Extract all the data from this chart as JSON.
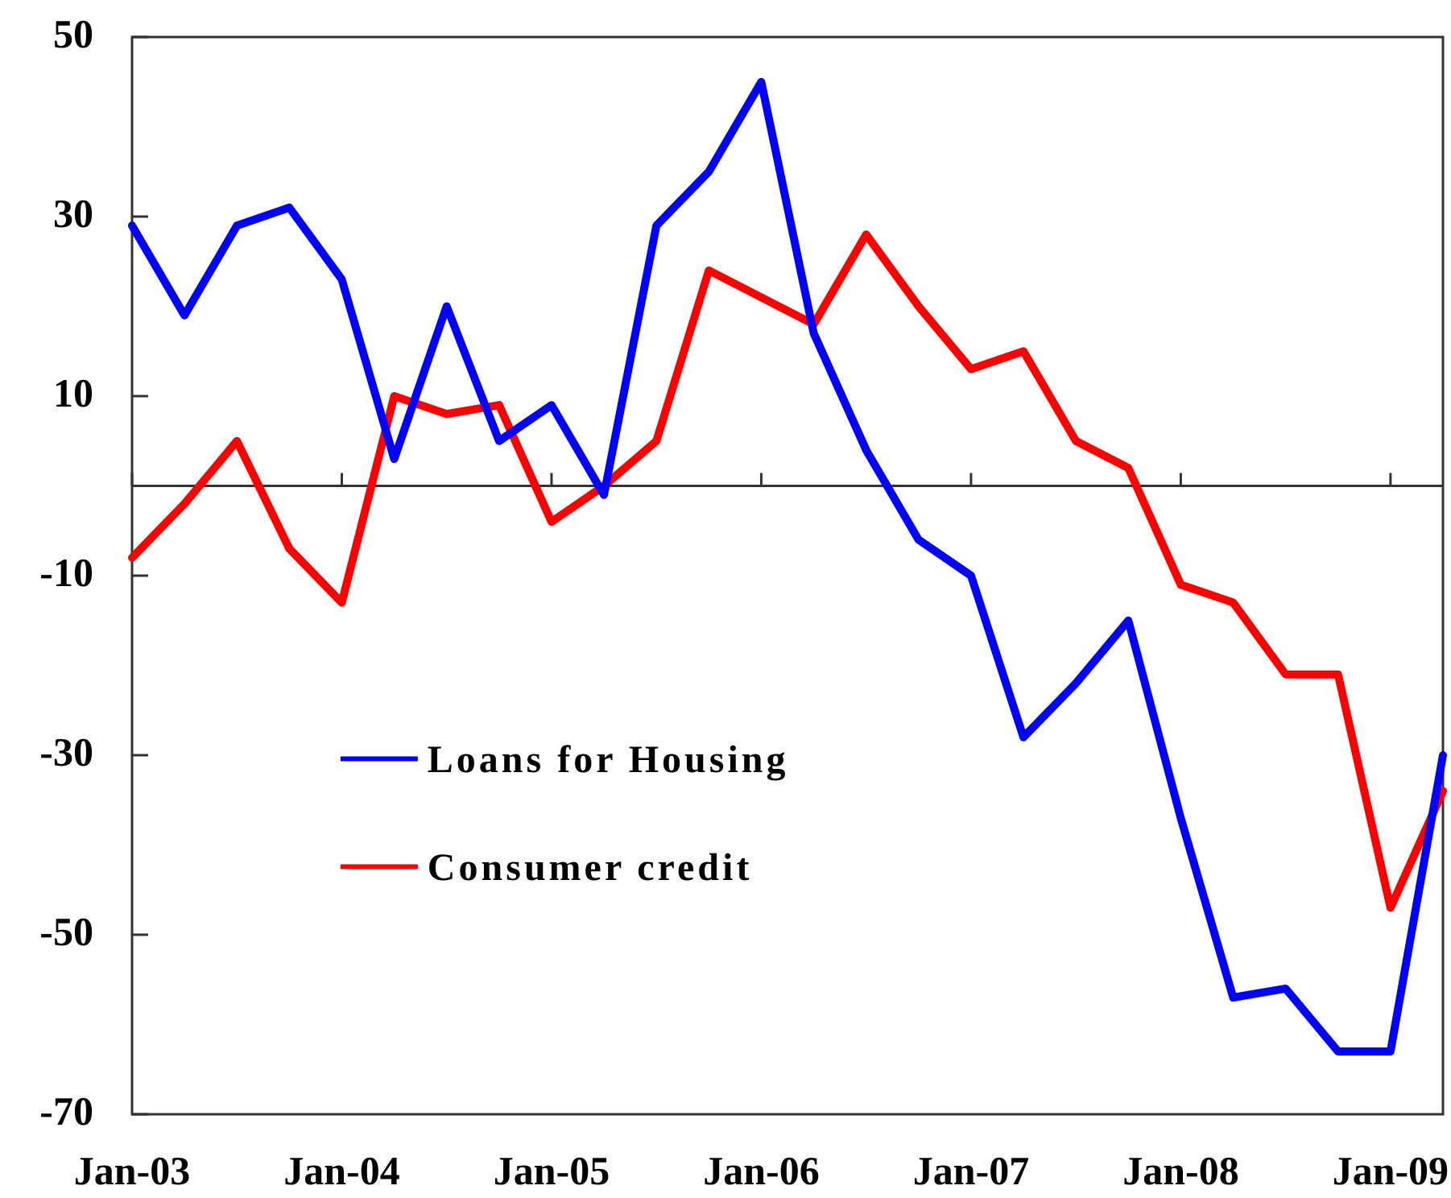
{
  "chart_data": {
    "type": "line",
    "categories": [
      "Jan-03",
      null,
      null,
      null,
      "Jan-04",
      null,
      null,
      null,
      "Jan-05",
      null,
      null,
      null,
      "Jan-06",
      null,
      null,
      null,
      "Jan-07",
      null,
      null,
      null,
      "Jan-08",
      null,
      null,
      null,
      "Jan-09",
      null
    ],
    "series": [
      {
        "name": "Loans for Housing",
        "color": "#0000ff",
        "values": [
          29,
          19,
          29,
          31,
          23,
          3,
          20,
          5,
          9,
          -1,
          29,
          35,
          45,
          17,
          4,
          -6,
          -10,
          -28,
          -22,
          -15,
          -37,
          -57,
          -56,
          -63,
          -63,
          -30
        ]
      },
      {
        "name": "Consumer credit",
        "color": "#ff0000",
        "values": [
          -8,
          -2,
          5,
          -7,
          -13,
          10,
          8,
          9,
          -4,
          0,
          5,
          24,
          21,
          18,
          28,
          20,
          13,
          15,
          5,
          2,
          -11,
          -13,
          -21,
          -21,
          -47,
          -34
        ]
      }
    ],
    "ylim": [
      -70,
      50
    ],
    "yticks": [
      -70,
      -50,
      -30,
      -10,
      10,
      30,
      50
    ],
    "ref_lines": [
      {
        "axis": "y",
        "value": 0
      }
    ],
    "grid": false,
    "legend": "bottom left",
    "marker": "none",
    "line_style": "solid"
  }
}
